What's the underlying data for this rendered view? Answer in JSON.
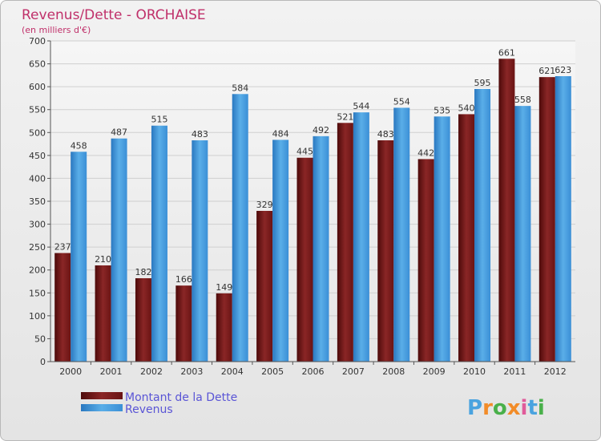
{
  "chart_data": {
    "type": "bar",
    "title": "Revenus/Dette - ORCHAISE",
    "subtitle": "(en milliers d'€)",
    "categories": [
      "2000",
      "2001",
      "2002",
      "2003",
      "2004",
      "2005",
      "2006",
      "2007",
      "2008",
      "2009",
      "2010",
      "2011",
      "2012"
    ],
    "series": [
      {
        "name": "Montant de la Dette",
        "color": "#7a1a1a",
        "values": [
          237,
          210,
          182,
          166,
          149,
          329,
          445,
          521,
          483,
          442,
          540,
          661,
          621
        ]
      },
      {
        "name": "Revenus",
        "color": "#3f96dc",
        "values": [
          458,
          487,
          515,
          483,
          584,
          484,
          492,
          544,
          554,
          535,
          595,
          558,
          623
        ]
      }
    ],
    "yticks": [
      "0",
      "50",
      "100",
      "150",
      "200",
      "250",
      "300",
      "350",
      "400",
      "450",
      "500",
      "550",
      "600",
      "650",
      "700"
    ],
    "ylim": [
      0,
      700
    ],
    "grid": true,
    "legend_position": "bottom-left"
  },
  "brand": {
    "text": "Proxiti",
    "letters": [
      "P",
      "r",
      "o",
      "x",
      "i",
      "t",
      "i"
    ],
    "colors": [
      "#4aa3df",
      "#f28c28",
      "#49b04a",
      "#f28c28",
      "#e05b9a",
      "#4aa3df",
      "#49b04a"
    ]
  }
}
